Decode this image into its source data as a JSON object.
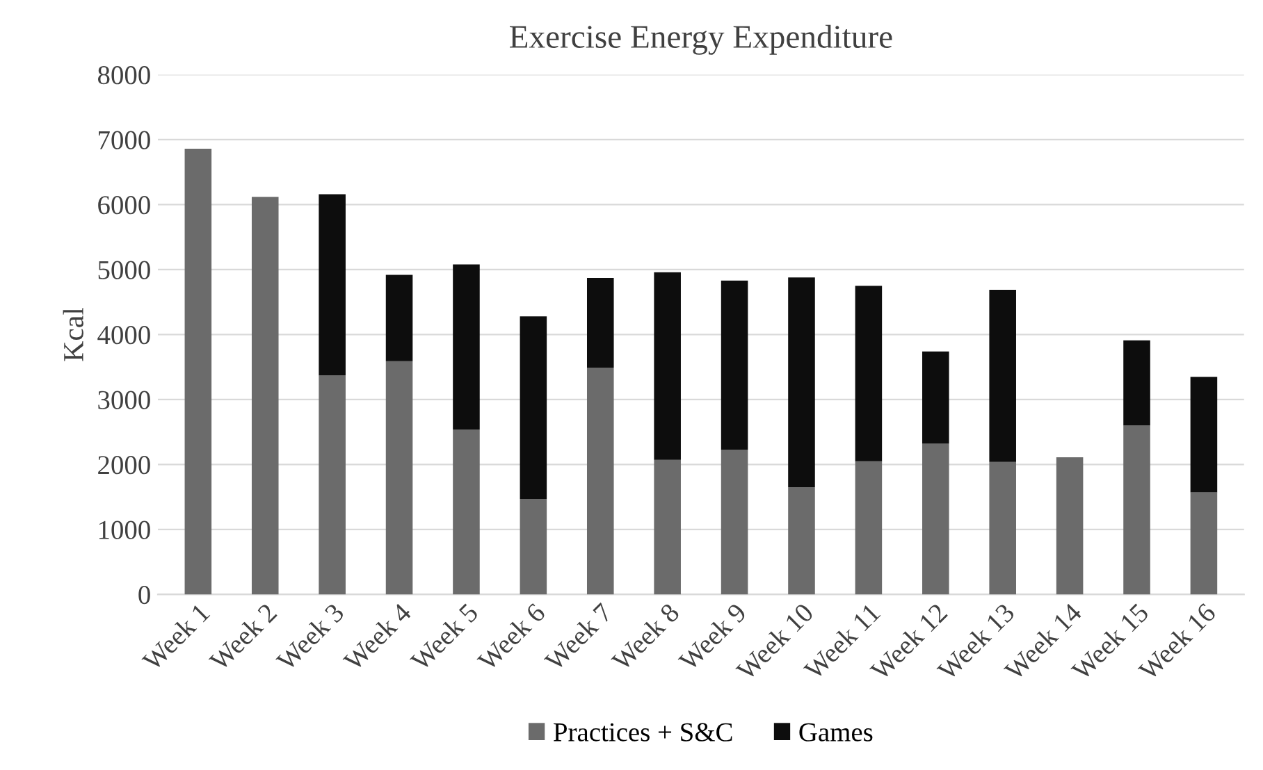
{
  "chart_data": {
    "type": "bar",
    "stacked": true,
    "title": "Exercise Energy Expenditure",
    "ylabel": "Kcal",
    "categories": [
      "Week 1",
      "Week 2",
      "Week 3",
      "Week 4",
      "Week 5",
      "Week 6",
      "Week 7",
      "Week 8",
      "Week 9",
      "Week 10",
      "Week 11",
      "Week 12",
      "Week 13",
      "Week 14",
      "Week 15",
      "Week 16"
    ],
    "series": [
      {
        "name": "Practices + S&C",
        "color": "#6b6b6b",
        "values": [
          6860,
          6120,
          3370,
          3590,
          2540,
          1470,
          3490,
          2070,
          2230,
          1650,
          2050,
          2320,
          2040,
          2110,
          2600,
          1570
        ]
      },
      {
        "name": "Games",
        "color": "#0d0d0d",
        "values": [
          null,
          null,
          2790,
          1330,
          2540,
          2810,
          1380,
          2890,
          2600,
          3230,
          2700,
          1420,
          2650,
          null,
          1310,
          1780
        ]
      }
    ],
    "ylim": [
      0,
      8000
    ],
    "yticks": [
      0,
      1000,
      2000,
      3000,
      4000,
      5000,
      6000,
      7000,
      8000
    ],
    "grid": "y",
    "legend": "bottom"
  }
}
